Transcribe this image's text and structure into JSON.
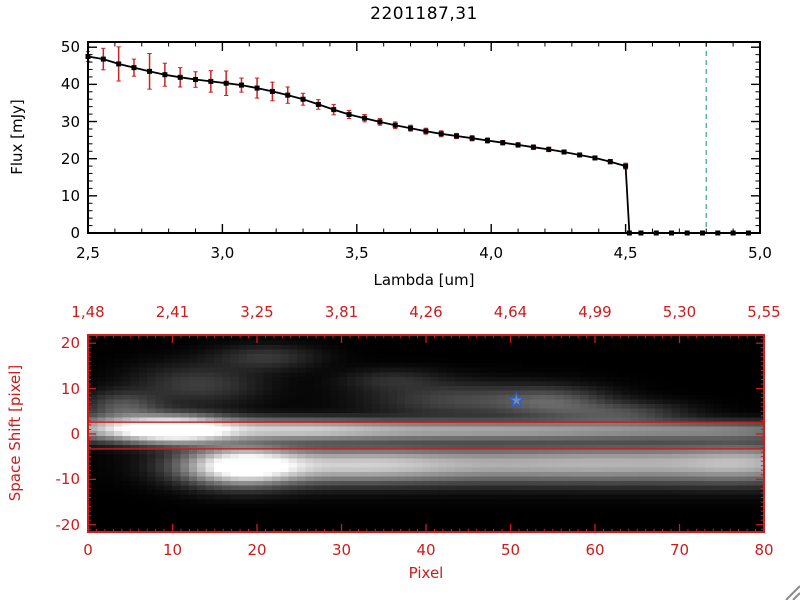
{
  "window": {
    "background": "#ffffff"
  },
  "chart_data": [
    {
      "type": "line",
      "title": "2201187,31",
      "xlabel": "Lambda [um]",
      "ylabel": "Flux [mJy]",
      "xlim": [
        2.5,
        5.0
      ],
      "ylim": [
        0,
        51.4
      ],
      "x_tick_values": [
        2.5,
        3.0,
        3.5,
        4.0,
        4.5,
        5.0
      ],
      "x_tick_labels": [
        "2,5",
        "3,0",
        "3,5",
        "4,0",
        "4,5",
        "5,0"
      ],
      "x_minor_step": 0.1,
      "y_tick_values": [
        0,
        10,
        20,
        30,
        40,
        50
      ],
      "y_tick_labels": [
        "0",
        "10",
        "20",
        "30",
        "40",
        "50"
      ],
      "y_minor_step": 2,
      "line_color": "#000000",
      "marker": "filled-square",
      "error_color": "#cc2222",
      "zero_line": {
        "y": 0,
        "color": "#cc2222",
        "style": "dashed"
      },
      "vline": {
        "x": 4.8,
        "color": "#3f9f9f",
        "style": "dashed"
      },
      "x": [
        2.5,
        2.557,
        2.614,
        2.671,
        2.729,
        2.786,
        2.843,
        2.9,
        2.957,
        3.014,
        3.071,
        3.129,
        3.186,
        3.243,
        3.3,
        3.357,
        3.414,
        3.471,
        3.529,
        3.586,
        3.643,
        3.7,
        3.757,
        3.814,
        3.871,
        3.929,
        3.986,
        4.043,
        4.1,
        4.157,
        4.214,
        4.271,
        4.329,
        4.386,
        4.443,
        4.5,
        4.514,
        4.557,
        4.614,
        4.671,
        4.729,
        4.786,
        4.843,
        4.9,
        4.957
      ],
      "flux": [
        47.5,
        46.8,
        45.5,
        44.5,
        43.5,
        42.6,
        41.9,
        41.3,
        40.8,
        40.3,
        39.8,
        39.0,
        38.1,
        37.1,
        36.0,
        34.6,
        33.2,
        31.9,
        30.9,
        29.9,
        29.0,
        28.2,
        27.4,
        26.7,
        26.1,
        25.5,
        24.9,
        24.3,
        23.7,
        23.1,
        22.5,
        21.8,
        21.0,
        20.2,
        19.2,
        18.0,
        0,
        0,
        0,
        0,
        0,
        0,
        0,
        0,
        0
      ],
      "flux_err": [
        1.3,
        2.9,
        4.6,
        2.3,
        4.8,
        3.1,
        2.6,
        2.1,
        2.9,
        3.3,
        1.9,
        2.7,
        2.5,
        2.2,
        1.6,
        1.3,
        1.4,
        1.1,
        1.0,
        0.9,
        0.9,
        0.8,
        0.8,
        0.8,
        0.7,
        0.7,
        0.7,
        0.6,
        0.6,
        0.6,
        0.6,
        0.5,
        0.5,
        0.5,
        0.6,
        0.8,
        0.25,
        0.25,
        0.25,
        0.25,
        0.25,
        0.25,
        0.25,
        0.25,
        0.25
      ]
    },
    {
      "type": "heatmap",
      "xlabel": "Pixel",
      "ylabel": "Space Shift [pixel]",
      "xlim": [
        0,
        80
      ],
      "ylim": [
        -21.6,
        21.8
      ],
      "x_tick_values": [
        0,
        10,
        20,
        30,
        40,
        50,
        60,
        70,
        80
      ],
      "x_tick_labels": [
        "0",
        "10",
        "20",
        "30",
        "40",
        "50",
        "60",
        "70",
        "80"
      ],
      "y_tick_values": [
        -20,
        -10,
        0,
        10,
        20
      ],
      "y_tick_labels": [
        "-20",
        "-10",
        "0",
        "10",
        "20"
      ],
      "top_axis_labels": [
        "1,48",
        "2,41",
        "3,25",
        "3,81",
        "4,26",
        "4,64",
        "4,99",
        "5,30",
        "5,55"
      ],
      "axis_color": "#cc1c1c",
      "background": "#000000",
      "aperture_lines_y": [
        2.6,
        -3.3
      ],
      "aperture_color": "#cc1c1c",
      "star": {
        "x": 50.7,
        "y": 7.4,
        "fill": "#7fb0ff",
        "stroke": "#2b5fd6"
      },
      "grid_nx": 81,
      "grid_ny": 43,
      "blobs": [
        {
          "x": 2,
          "y": 1.2,
          "sx": 5,
          "sy": 1.7,
          "a": 0.5
        },
        {
          "x": 10,
          "y": 1.0,
          "sx": 4.5,
          "sy": 2.0,
          "a": 1.1
        },
        {
          "x": 22,
          "y": 1.0,
          "sx": 9,
          "sy": 1.6,
          "a": 0.55
        },
        {
          "x": 40,
          "y": 0.8,
          "sx": 14,
          "sy": 1.5,
          "a": 0.42
        },
        {
          "x": 62,
          "y": 0.8,
          "sx": 14,
          "sy": 1.4,
          "a": 0.33
        },
        {
          "x": 78,
          "y": 0.8,
          "sx": 8,
          "sy": 1.3,
          "a": 0.22
        },
        {
          "x": 18,
          "y": -7.2,
          "sx": 4.5,
          "sy": 2.7,
          "a": 1.05
        },
        {
          "x": 30,
          "y": -7.0,
          "sx": 9,
          "sy": 2.6,
          "a": 0.55
        },
        {
          "x": 48,
          "y": -6.8,
          "sx": 14,
          "sy": 2.7,
          "a": 0.45
        },
        {
          "x": 68,
          "y": -6.6,
          "sx": 12,
          "sy": 2.9,
          "a": 0.42
        },
        {
          "x": 79,
          "y": -6.5,
          "sx": 6,
          "sy": 2.9,
          "a": 0.36
        },
        {
          "x": 4,
          "y": 6,
          "sx": 3,
          "sy": 2.2,
          "a": 0.26
        },
        {
          "x": 13,
          "y": 11,
          "sx": 5,
          "sy": 3,
          "a": 0.17
        },
        {
          "x": 21,
          "y": 17,
          "sx": 4,
          "sy": 1.8,
          "a": 0.15
        },
        {
          "x": 44,
          "y": 7.5,
          "sx": 7,
          "sy": 2.6,
          "a": 0.2
        },
        {
          "x": 55,
          "y": 7,
          "sx": 4.5,
          "sy": 2.2,
          "a": 0.26
        },
        {
          "x": 63,
          "y": 4.5,
          "sx": 5,
          "sy": 1.7,
          "a": 0.22
        },
        {
          "x": 36,
          "y": 12,
          "sx": 4,
          "sy": 1.6,
          "a": 0.11
        }
      ]
    }
  ]
}
